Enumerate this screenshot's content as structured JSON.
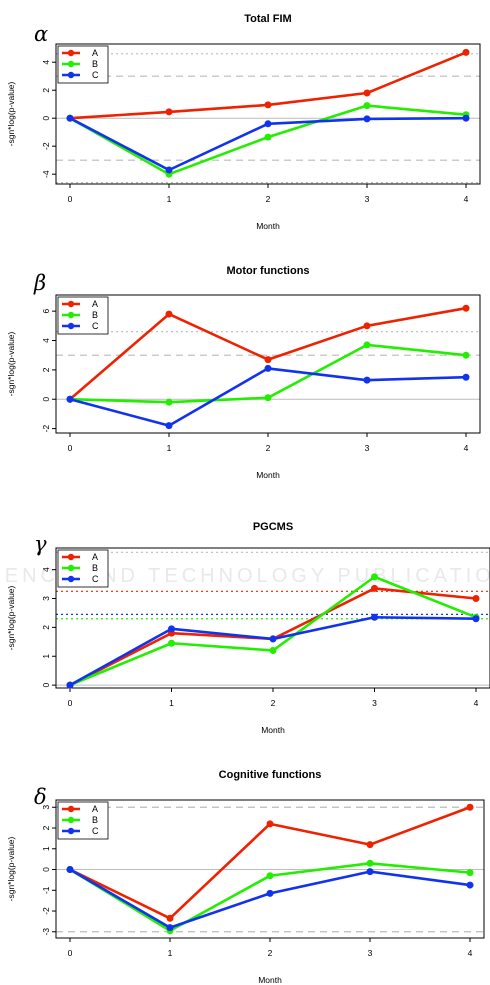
{
  "watermark": "SCIENCE AND TECHNOLOGY PUBLICATIONS",
  "colors": {
    "A": "#ee2200",
    "B": "#22ee00",
    "C": "#1133ee",
    "ref": "#bbbbbb"
  },
  "chart_data": [
    {
      "type": "line",
      "letter": "α",
      "title": "Total FIM",
      "xlabel": "Month",
      "ylabel": "-sgn*log(p-value)",
      "x": [
        0,
        1,
        2,
        3,
        4
      ],
      "xticks": [
        "0",
        "1",
        "2",
        "3",
        "4"
      ],
      "yticks": [
        "-4",
        "-2",
        "0",
        "2",
        "4"
      ],
      "ylim": [
        -4.7,
        5.3
      ],
      "series": [
        {
          "name": "A",
          "color": "#ee2200",
          "values": [
            0.0,
            0.45,
            0.95,
            1.8,
            4.7
          ]
        },
        {
          "name": "B",
          "color": "#22ee00",
          "values": [
            0.0,
            -4.0,
            -1.35,
            0.9,
            0.25
          ]
        },
        {
          "name": "C",
          "color": "#1133ee",
          "values": [
            0.0,
            -3.7,
            -0.4,
            -0.05,
            0.0
          ]
        }
      ],
      "reference_lines": [
        {
          "y": 0,
          "style": "solid",
          "color": "#bbbbbb"
        },
        {
          "y": 3.0,
          "style": "dashed",
          "color": "#bbbbbb"
        },
        {
          "y": -3.0,
          "style": "dashed",
          "color": "#bbbbbb"
        },
        {
          "y": 4.6,
          "style": "dotted",
          "color": "#bbbbbb"
        },
        {
          "y": -4.6,
          "style": "dotted",
          "color": "#bbbbbb"
        }
      ],
      "legend": "top-left",
      "grid": false
    },
    {
      "type": "line",
      "letter": "β",
      "title": "Motor functions",
      "xlabel": "Month",
      "ylabel": "-sgn*log(p-value)",
      "x": [
        0,
        1,
        2,
        3,
        4
      ],
      "xticks": [
        "0",
        "1",
        "2",
        "3",
        "4"
      ],
      "yticks": [
        "-2",
        "0",
        "2",
        "4",
        "6"
      ],
      "ylim": [
        -2.3,
        7.1
      ],
      "series": [
        {
          "name": "A",
          "color": "#ee2200",
          "values": [
            0.0,
            5.8,
            2.7,
            5.0,
            6.2
          ]
        },
        {
          "name": "B",
          "color": "#22ee00",
          "values": [
            0.0,
            -0.2,
            0.1,
            3.7,
            3.0
          ]
        },
        {
          "name": "C",
          "color": "#1133ee",
          "values": [
            0.0,
            -1.8,
            2.1,
            1.3,
            1.5
          ]
        }
      ],
      "reference_lines": [
        {
          "y": 0,
          "style": "solid",
          "color": "#bbbbbb"
        },
        {
          "y": 3.0,
          "style": "dashed",
          "color": "#bbbbbb"
        },
        {
          "y": 4.6,
          "style": "dotted",
          "color": "#bbbbbb"
        }
      ],
      "legend": "top-left",
      "grid": false
    },
    {
      "type": "line",
      "letter": "γ",
      "title": "PGCMS",
      "xlabel": "Month",
      "ylabel": "-sgn*log(p-value)",
      "x": [
        0,
        1,
        2,
        3,
        4
      ],
      "xticks": [
        "0",
        "1",
        "2",
        "3",
        "4"
      ],
      "yticks": [
        "0",
        "1",
        "2",
        "3",
        "4"
      ],
      "ylim": [
        -0.1,
        4.75
      ],
      "series": [
        {
          "name": "A",
          "color": "#ee2200",
          "values": [
            0.0,
            1.8,
            1.6,
            3.35,
            3.0
          ]
        },
        {
          "name": "B",
          "color": "#22ee00",
          "values": [
            0.0,
            1.45,
            1.2,
            3.75,
            2.35
          ]
        },
        {
          "name": "C",
          "color": "#1133ee",
          "values": [
            0.0,
            1.95,
            1.6,
            2.35,
            2.3
          ]
        }
      ],
      "reference_lines": [
        {
          "y": 0,
          "style": "solid",
          "color": "#bbbbbb"
        },
        {
          "y": 3.25,
          "style": "dotted",
          "color": "#ee2200"
        },
        {
          "y": 2.45,
          "style": "dotted",
          "color": "#1133ee"
        },
        {
          "y": 2.3,
          "style": "dotted",
          "color": "#22ee00"
        },
        {
          "y": 4.6,
          "style": "dotted",
          "color": "#bbbbbb"
        }
      ],
      "legend": "top-left",
      "grid": false
    },
    {
      "type": "line",
      "letter": "δ",
      "title": "Cognitive functions",
      "xlabel": "Month",
      "ylabel": "-sgn*log(p-value)",
      "x": [
        0,
        1,
        2,
        3,
        4
      ],
      "xticks": [
        "0",
        "1",
        "2",
        "3",
        "4"
      ],
      "yticks": [
        "-3",
        "-2",
        "-1",
        "0",
        "1",
        "2",
        "3"
      ],
      "ylim": [
        -3.3,
        3.35
      ],
      "series": [
        {
          "name": "A",
          "color": "#ee2200",
          "values": [
            0.0,
            -2.35,
            2.2,
            1.2,
            3.0
          ]
        },
        {
          "name": "B",
          "color": "#22ee00",
          "values": [
            0.0,
            -2.95,
            -0.3,
            0.3,
            -0.15
          ]
        },
        {
          "name": "C",
          "color": "#1133ee",
          "values": [
            0.0,
            -2.8,
            -1.15,
            -0.1,
            -0.75
          ]
        }
      ],
      "reference_lines": [
        {
          "y": 0,
          "style": "solid",
          "color": "#bbbbbb"
        },
        {
          "y": 3.0,
          "style": "dashed",
          "color": "#bbbbbb"
        },
        {
          "y": -3.0,
          "style": "dashed",
          "color": "#bbbbbb"
        }
      ],
      "legend": "top-left",
      "grid": false
    }
  ]
}
